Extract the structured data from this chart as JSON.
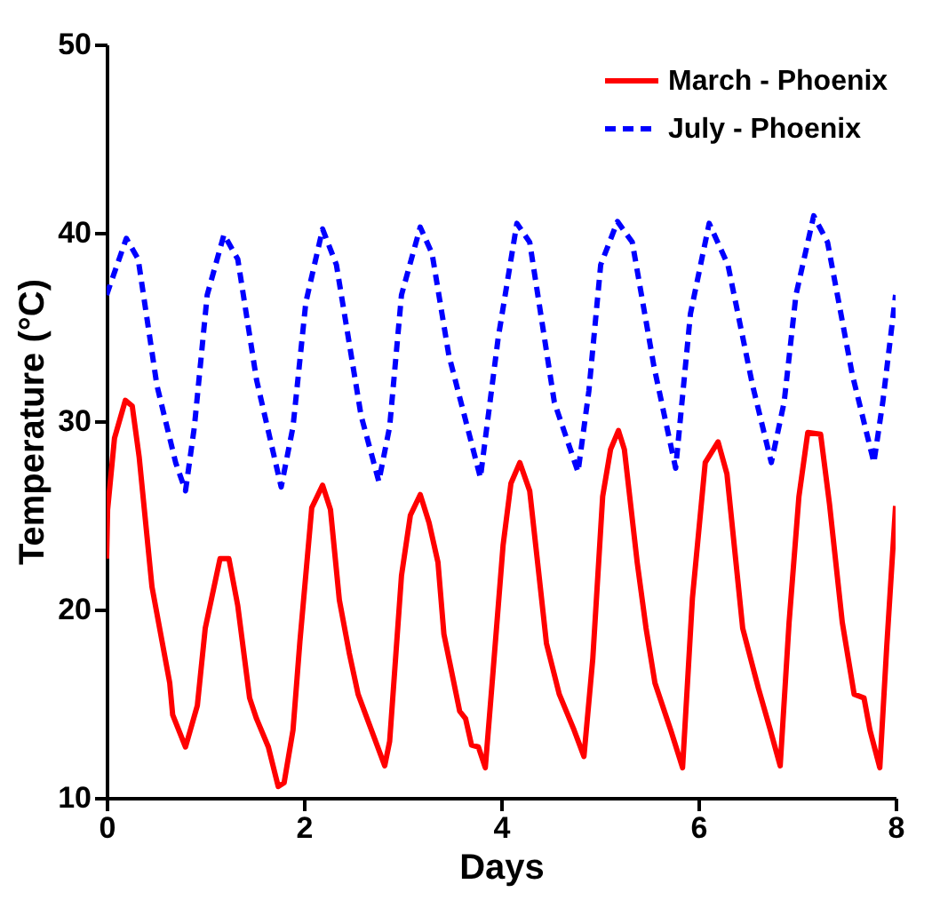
{
  "chart_data": {
    "type": "line",
    "xlabel": "Days",
    "ylabel": "Temperature (°C)",
    "xlim": [
      0,
      8
    ],
    "xticks": [
      0,
      2,
      4,
      6,
      8
    ],
    "ylim": [
      10,
      50
    ],
    "yticks": [
      10,
      20,
      30,
      40,
      50
    ],
    "legend": "top right",
    "grid": false,
    "series": [
      {
        "name": "March - Phoenix",
        "color": "#ff0000",
        "line_style": "solid",
        "x": [
          0,
          0.01,
          0.08,
          0.19,
          0.26,
          0.33,
          0.46,
          0.64,
          0.67,
          0.8,
          0.92,
          1.0,
          1.15,
          1.24,
          1.33,
          1.45,
          1.52,
          1.64,
          1.74,
          1.8,
          1.89,
          1.96,
          2.08,
          2.19,
          2.27,
          2.36,
          2.46,
          2.55,
          2.82,
          2.87,
          2.99,
          3.08,
          3.18,
          3.27,
          3.36,
          3.42,
          3.58,
          3.64,
          3.7,
          3.77,
          3.84,
          3.92,
          4.02,
          4.1,
          4.19,
          4.29,
          4.37,
          4.46,
          4.59,
          4.74,
          4.84,
          4.93,
          5.03,
          5.11,
          5.19,
          5.25,
          5.38,
          5.47,
          5.56,
          5.72,
          5.84,
          5.94,
          6.07,
          6.2,
          6.29,
          6.45,
          6.61,
          6.73,
          6.83,
          6.92,
          7.02,
          7.11,
          7.24,
          7.33,
          7.46,
          7.58,
          7.68,
          7.74,
          7.84,
          7.91,
          8.0
        ],
        "values": [
          22.7,
          25.3,
          29.1,
          31.1,
          30.8,
          28.1,
          21.2,
          16.1,
          14.4,
          12.7,
          14.9,
          19.0,
          22.7,
          22.7,
          20.2,
          15.3,
          14.2,
          12.7,
          10.6,
          10.8,
          13.6,
          18.3,
          25.4,
          26.6,
          25.3,
          20.5,
          17.7,
          15.5,
          11.7,
          13.0,
          21.8,
          25.0,
          26.1,
          24.6,
          22.5,
          18.7,
          14.6,
          14.2,
          12.8,
          12.7,
          11.6,
          16.8,
          23.4,
          26.7,
          27.8,
          26.3,
          22.5,
          18.2,
          15.5,
          13.6,
          12.2,
          17.4,
          26.0,
          28.5,
          29.5,
          28.5,
          22.5,
          19.0,
          16.1,
          13.6,
          11.6,
          20.6,
          27.8,
          28.9,
          27.2,
          19.0,
          15.8,
          13.6,
          11.7,
          19.3,
          26.0,
          29.4,
          29.3,
          25.6,
          19.3,
          15.5,
          15.3,
          13.6,
          11.6,
          18.0,
          25.5
        ]
      },
      {
        "name": "July - Phoenix",
        "color": "#0000ff",
        "line_style": "dashed",
        "x": [
          0,
          0.2,
          0.32,
          0.51,
          0.7,
          0.8,
          0.89,
          1.02,
          1.19,
          1.33,
          1.52,
          1.77,
          1.89,
          2.02,
          2.19,
          2.33,
          2.58,
          2.76,
          2.87,
          2.99,
          3.18,
          3.3,
          3.47,
          3.79,
          3.97,
          4.16,
          4.29,
          4.54,
          4.78,
          4.89,
          5.01,
          5.18,
          5.33,
          5.55,
          5.77,
          5.92,
          6.11,
          6.3,
          6.55,
          6.74,
          6.87,
          6.99,
          7.17,
          7.31,
          7.56,
          7.78,
          7.87,
          8.0
        ],
        "values": [
          36.7,
          39.7,
          38.6,
          31.9,
          27.8,
          26.3,
          29.7,
          36.7,
          39.9,
          38.6,
          32.2,
          26.5,
          29.7,
          36.3,
          40.2,
          38.3,
          30.3,
          26.8,
          29.7,
          36.7,
          40.3,
          38.9,
          33.5,
          27.0,
          34.4,
          40.5,
          39.5,
          31.0,
          27.3,
          31.6,
          38.3,
          40.6,
          39.5,
          32.9,
          27.5,
          35.7,
          40.5,
          38.3,
          31.9,
          27.8,
          31.0,
          36.7,
          40.9,
          39.5,
          32.5,
          27.8,
          31.0,
          36.7
        ]
      }
    ]
  }
}
